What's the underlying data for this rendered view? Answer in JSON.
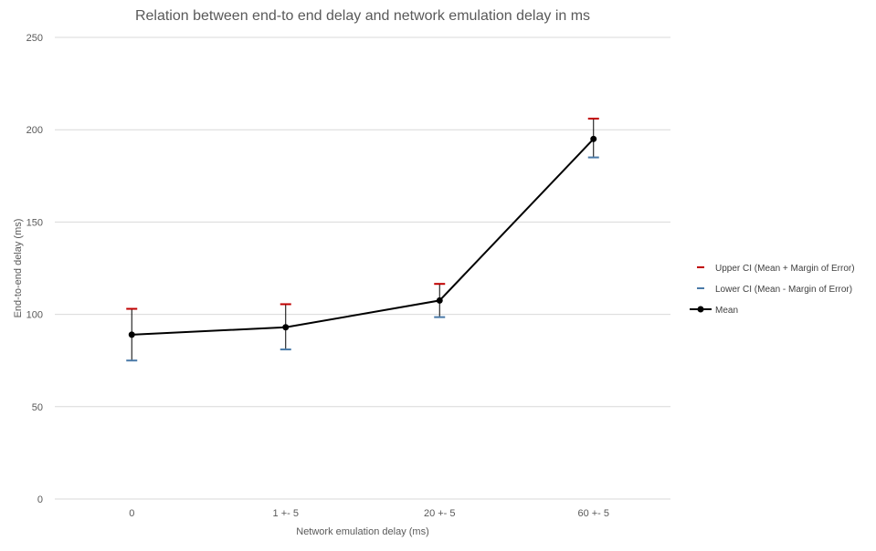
{
  "chart_data": {
    "type": "line",
    "title": "Relation between end-to end delay and network emulation delay in ms",
    "xlabel": "Network emulation delay (ms)",
    "ylabel": "End-to-end delay (ms)",
    "categories": [
      "0",
      "1 +- 5",
      "20 +- 5",
      "60 +- 5"
    ],
    "ylim": [
      0,
      250
    ],
    "yticks": [
      0,
      50,
      100,
      150,
      200,
      250
    ],
    "grid": true,
    "legend_position": "right",
    "series": [
      {
        "name": "Upper CI (Mean + Margin of Error)",
        "marker": "dash",
        "color": "#c00000",
        "values": [
          103,
          105.5,
          116.5,
          206
        ]
      },
      {
        "name": "Lower CI (Mean - Margin of Error)",
        "marker": "dash",
        "color": "#4a7aa8",
        "values": [
          75,
          81,
          98.5,
          185
        ]
      },
      {
        "name": "Mean",
        "marker": "circle",
        "color": "#000000",
        "values": [
          89,
          93,
          107.5,
          195
        ]
      }
    ]
  }
}
